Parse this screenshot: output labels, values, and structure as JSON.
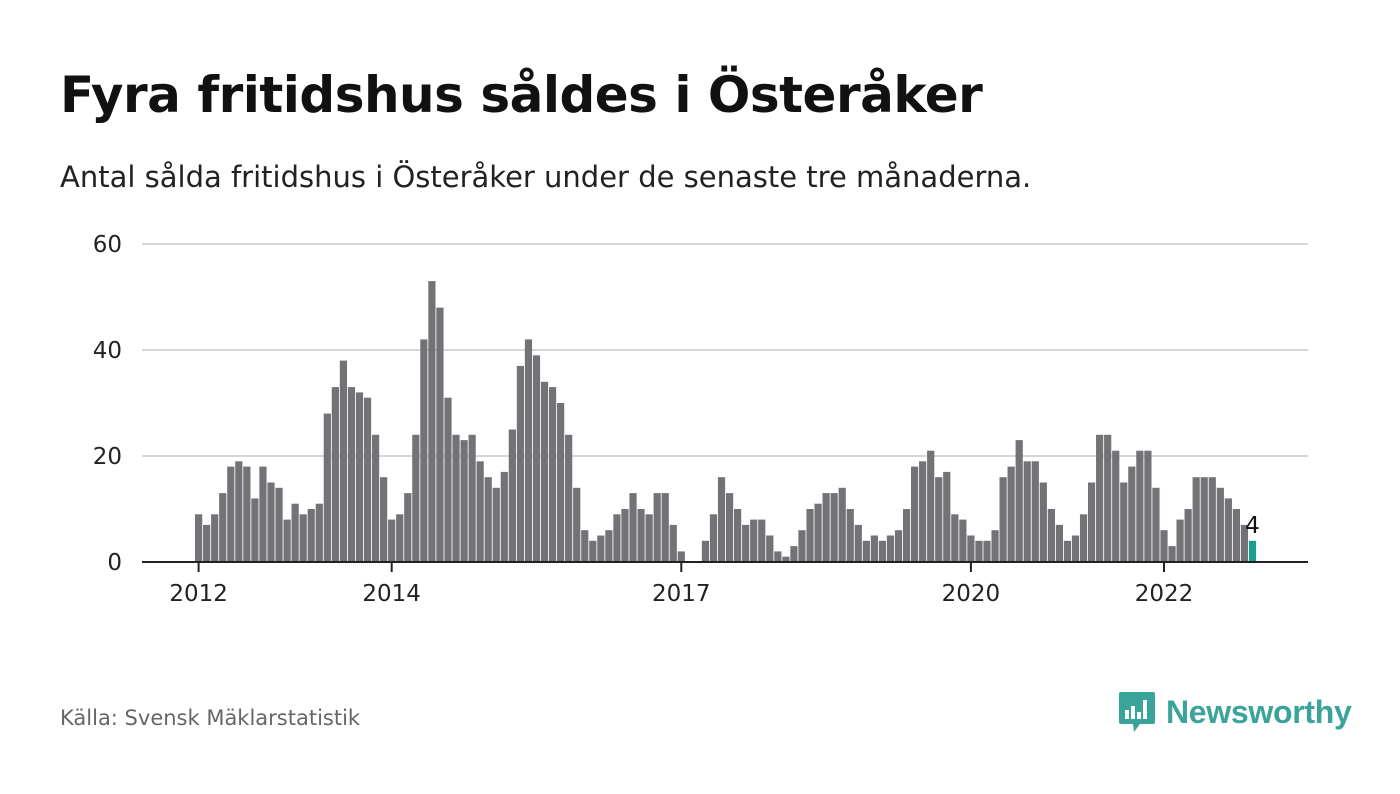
{
  "title": "Fyra fritidshus såldes i Österåker",
  "subtitle": "Antal sålda fritidshus i Österåker under de senaste tre månaderna.",
  "source": "Källa: Svensk Mäklarstatistik",
  "brand": {
    "name": "Newsworthy",
    "icon": "newsworthy-logo-icon",
    "color": "#3aa39a"
  },
  "colors": {
    "bar": "#737277",
    "highlight": "#1a9e93",
    "grid": "#d6d6d6",
    "axis": "#222222"
  },
  "chart_data": {
    "type": "bar",
    "title": "Fyra fritidshus såldes i Österåker",
    "xlabel": "",
    "ylabel": "",
    "ylim": [
      0,
      60
    ],
    "yticks": [
      0,
      20,
      40,
      60
    ],
    "x_tick_labels": [
      {
        "label": "2012",
        "index": 0
      },
      {
        "label": "2014",
        "index": 24
      },
      {
        "label": "2017",
        "index": 60
      },
      {
        "label": "2020",
        "index": 96
      },
      {
        "label": "2022",
        "index": 120
      }
    ],
    "grid": true,
    "legend": "none",
    "highlight_index": 131,
    "highlight_label": "4",
    "values": [
      9,
      7,
      9,
      13,
      18,
      19,
      18,
      12,
      18,
      15,
      14,
      8,
      11,
      9,
      10,
      11,
      28,
      33,
      38,
      33,
      32,
      31,
      24,
      16,
      8,
      9,
      13,
      24,
      42,
      53,
      48,
      31,
      24,
      23,
      24,
      19,
      16,
      14,
      17,
      25,
      37,
      42,
      39,
      34,
      33,
      30,
      24,
      14,
      6,
      4,
      5,
      6,
      9,
      10,
      13,
      10,
      9,
      13,
      13,
      7,
      2,
      0,
      0,
      4,
      9,
      16,
      13,
      10,
      7,
      8,
      8,
      5,
      2,
      1,
      3,
      6,
      10,
      11,
      13,
      13,
      14,
      10,
      7,
      4,
      5,
      4,
      5,
      6,
      10,
      18,
      19,
      21,
      16,
      17,
      9,
      8,
      5,
      4,
      4,
      6,
      16,
      18,
      23,
      19,
      19,
      15,
      10,
      7,
      4,
      5,
      9,
      15,
      24,
      24,
      21,
      15,
      18,
      21,
      21,
      14,
      6,
      3,
      8,
      10,
      16,
      16,
      16,
      14,
      12,
      10,
      7,
      4
    ]
  }
}
